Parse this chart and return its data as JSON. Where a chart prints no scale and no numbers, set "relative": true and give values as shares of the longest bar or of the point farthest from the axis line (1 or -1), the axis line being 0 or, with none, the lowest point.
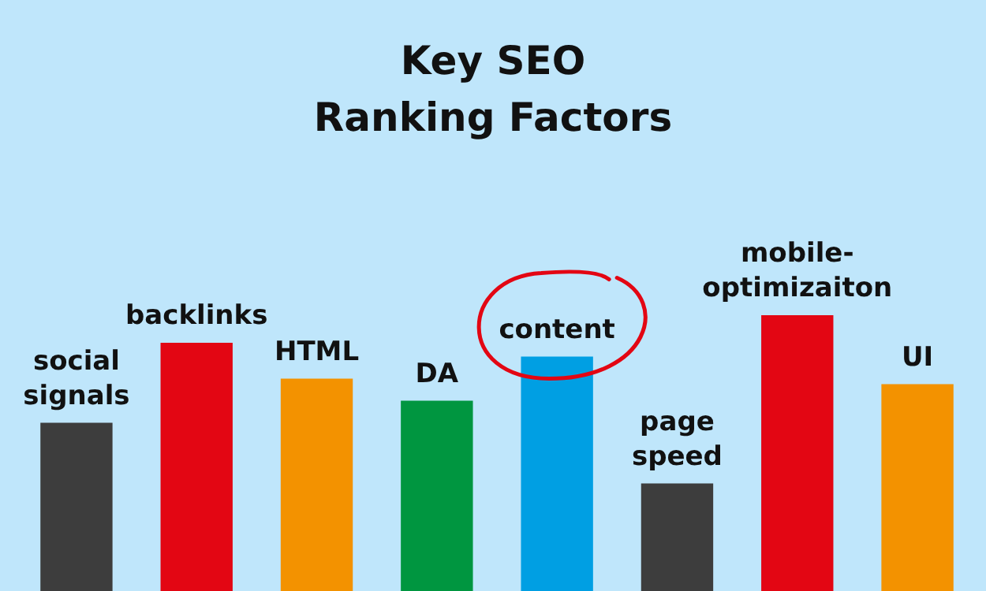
{
  "chart_data": {
    "type": "bar",
    "title": "Key SEO\nRanking Factors",
    "relative": true,
    "categories": [
      "social\nsignals",
      "backlinks",
      "HTML",
      "DA",
      "content",
      "page\nspeed",
      "mobile-\noptimizaiton",
      "UI"
    ],
    "values": [
      0.61,
      0.9,
      0.77,
      0.69,
      0.85,
      0.39,
      1,
      0.75
    ],
    "colors": [
      "#3d3d3d",
      "#e30613",
      "#f39200",
      "#009640",
      "#009fe3",
      "#3d3d3d",
      "#e30613",
      "#f39200"
    ]
  }
}
